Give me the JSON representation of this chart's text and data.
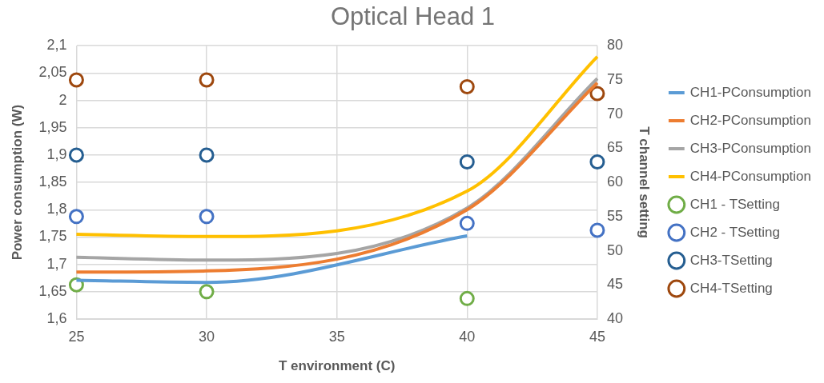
{
  "chart_data": {
    "type": "line",
    "title": "Optical Head 1",
    "xlabel": "T environment (C)",
    "ylabel": "Power consumption (W)",
    "y2label": "T channel setting",
    "x": [
      25,
      30,
      40,
      45
    ],
    "xlim": [
      25,
      45
    ],
    "xticks": [
      25,
      30,
      35,
      40,
      45
    ],
    "ylim": [
      1.6,
      2.1
    ],
    "yticks": [
      {
        "value": 1.6,
        "label": "1,6"
      },
      {
        "value": 1.65,
        "label": "1,65"
      },
      {
        "value": 1.7,
        "label": "1,7"
      },
      {
        "value": 1.75,
        "label": "1,75"
      },
      {
        "value": 1.8,
        "label": "1,8"
      },
      {
        "value": 1.85,
        "label": "1,85"
      },
      {
        "value": 1.9,
        "label": "1,9"
      },
      {
        "value": 1.95,
        "label": "1,95"
      },
      {
        "value": 2,
        "label": "2"
      },
      {
        "value": 2.05,
        "label": "2,05"
      },
      {
        "value": 2.1,
        "label": "2,1"
      }
    ],
    "y2lim": [
      40,
      80
    ],
    "y2ticks": [
      40,
      45,
      50,
      55,
      60,
      65,
      70,
      75,
      80
    ],
    "grid": true,
    "legend": "right",
    "marker": "none",
    "line_style": "solid",
    "series": [
      {
        "name": "CH1-PConsumption",
        "type": "line",
        "color": "#5b9bd5",
        "values": [
          1.671,
          1.667,
          1.752,
          null
        ]
      },
      {
        "name": "CH2-PConsumption",
        "type": "line",
        "color": "#ed7d31",
        "values": [
          1.686,
          1.688,
          1.8,
          2.032
        ]
      },
      {
        "name": "CH3-PConsumption",
        "type": "line",
        "color": "#a5a5a5",
        "values": [
          1.713,
          1.708,
          1.803,
          2.04
        ]
      },
      {
        "name": "CH4-PConsumption",
        "type": "line",
        "color": "#ffc000",
        "values": [
          1.755,
          1.751,
          1.834,
          2.08
        ]
      },
      {
        "name": "CH1 - TSetting",
        "type": "scatter",
        "axis": "y2",
        "marker": "circle",
        "color": "#70ad47",
        "values": [
          45,
          44,
          43,
          null
        ]
      },
      {
        "name": "CH2 - TSetting",
        "type": "scatter",
        "axis": "y2",
        "marker": "circle",
        "color": "#4472c4",
        "values": [
          55,
          55,
          54,
          53
        ]
      },
      {
        "name": "CH3-TSetting",
        "type": "scatter",
        "axis": "y2",
        "marker": "circle",
        "color": "#255e91",
        "values": [
          64,
          64,
          63,
          63
        ]
      },
      {
        "name": "CH4-TSetting",
        "type": "scatter",
        "axis": "y2",
        "marker": "circle",
        "color": "#9e480e",
        "values": [
          75,
          75,
          74,
          73
        ]
      }
    ]
  }
}
